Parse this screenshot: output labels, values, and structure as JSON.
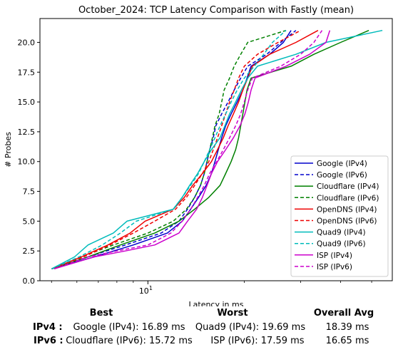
{
  "chart_data": {
    "type": "line",
    "title": "October_2024: TCP Latency Comparison with Fastly (mean)",
    "xlabel": "Latency in ms",
    "ylabel": "# Probes",
    "xscale": "log",
    "xlim": [
      4.6,
      58
    ],
    "ylim": [
      0,
      22
    ],
    "xticks": [
      {
        "value": 10,
        "label": "10^1"
      }
    ],
    "yticks": [
      {
        "value": 0,
        "label": "0.0"
      },
      {
        "value": 2.5,
        "label": "2.5"
      },
      {
        "value": 5,
        "label": "5.0"
      },
      {
        "value": 7.5,
        "label": "7.5"
      },
      {
        "value": 10,
        "label": "10.0"
      },
      {
        "value": 12.5,
        "label": "12.5"
      },
      {
        "value": 15,
        "label": "15.0"
      },
      {
        "value": 17.5,
        "label": "17.5"
      },
      {
        "value": 20,
        "label": "20.0"
      }
    ],
    "grid": false,
    "legend_position": "lower right",
    "series": [
      {
        "name": "Google (IPv4)",
        "color": "#0000cc",
        "dash": "solid",
        "points": [
          [
            5.0,
            1
          ],
          [
            6.8,
            2
          ],
          [
            9.0,
            3
          ],
          [
            11.5,
            4
          ],
          [
            12.8,
            5
          ],
          [
            13.6,
            6
          ],
          [
            14.4,
            7
          ],
          [
            15.2,
            8
          ],
          [
            15.8,
            9
          ],
          [
            16.2,
            10
          ],
          [
            16.6,
            11
          ],
          [
            17.0,
            12
          ],
          [
            17.5,
            13
          ],
          [
            18.2,
            14
          ],
          [
            19.0,
            15
          ],
          [
            19.8,
            16
          ],
          [
            20.4,
            17
          ],
          [
            21.0,
            18
          ],
          [
            24.0,
            19
          ],
          [
            26.5,
            20
          ],
          [
            28.0,
            21
          ]
        ]
      },
      {
        "name": "Google (IPv6)",
        "color": "#0000cc",
        "dash": "dashed",
        "points": [
          [
            5.0,
            1
          ],
          [
            6.5,
            2
          ],
          [
            8.5,
            3
          ],
          [
            11.0,
            4
          ],
          [
            12.5,
            5
          ],
          [
            13.3,
            6
          ],
          [
            14.0,
            7
          ],
          [
            14.6,
            8
          ],
          [
            15.0,
            9
          ],
          [
            15.3,
            10
          ],
          [
            15.6,
            11
          ],
          [
            16.0,
            12
          ],
          [
            16.3,
            13
          ],
          [
            17.0,
            14
          ],
          [
            17.8,
            15
          ],
          [
            18.6,
            16
          ],
          [
            19.5,
            17
          ],
          [
            20.5,
            18
          ],
          [
            23.5,
            19
          ],
          [
            26.0,
            20
          ],
          [
            29.0,
            21
          ]
        ]
      },
      {
        "name": "Cloudflare (IPv4)",
        "color": "#008000",
        "dash": "solid",
        "points": [
          [
            5.0,
            1
          ],
          [
            6.5,
            2
          ],
          [
            8.2,
            3
          ],
          [
            10.5,
            4
          ],
          [
            12.5,
            5
          ],
          [
            14.0,
            6
          ],
          [
            15.5,
            7
          ],
          [
            16.8,
            8
          ],
          [
            17.5,
            9
          ],
          [
            18.2,
            10
          ],
          [
            18.8,
            11
          ],
          [
            19.2,
            12
          ],
          [
            19.5,
            13
          ],
          [
            19.8,
            14
          ],
          [
            20.1,
            15
          ],
          [
            20.4,
            16
          ],
          [
            21.0,
            17
          ],
          [
            28.0,
            18
          ],
          [
            33.0,
            19
          ],
          [
            40.0,
            20
          ],
          [
            49.0,
            21
          ]
        ]
      },
      {
        "name": "Cloudflare (IPv6)",
        "color": "#008000",
        "dash": "dashed",
        "points": [
          [
            5.0,
            1
          ],
          [
            6.2,
            2
          ],
          [
            7.8,
            3
          ],
          [
            10.0,
            4
          ],
          [
            12.0,
            5
          ],
          [
            13.2,
            6
          ],
          [
            14.0,
            7
          ],
          [
            14.6,
            8
          ],
          [
            15.0,
            9
          ],
          [
            15.3,
            10
          ],
          [
            15.6,
            11
          ],
          [
            15.9,
            12
          ],
          [
            16.2,
            13
          ],
          [
            16.7,
            14
          ],
          [
            17.0,
            15
          ],
          [
            17.3,
            16
          ],
          [
            18.0,
            17
          ],
          [
            18.6,
            18
          ],
          [
            19.5,
            19
          ],
          [
            20.5,
            20
          ],
          [
            27.0,
            21
          ]
        ]
      },
      {
        "name": "OpenDNS (IPv4)",
        "color": "#ee0000",
        "dash": "solid",
        "points": [
          [
            5.0,
            1
          ],
          [
            6.2,
            2
          ],
          [
            7.5,
            3
          ],
          [
            8.8,
            4
          ],
          [
            9.8,
            5
          ],
          [
            12.0,
            6
          ],
          [
            13.0,
            7
          ],
          [
            13.8,
            8
          ],
          [
            14.8,
            9
          ],
          [
            15.8,
            10
          ],
          [
            16.5,
            11
          ],
          [
            17.2,
            12
          ],
          [
            17.8,
            13
          ],
          [
            18.5,
            14
          ],
          [
            19.2,
            15
          ],
          [
            19.8,
            16
          ],
          [
            20.5,
            17
          ],
          [
            21.2,
            18
          ],
          [
            24.0,
            19
          ],
          [
            29.0,
            20
          ],
          [
            34.0,
            21
          ]
        ]
      },
      {
        "name": "OpenDNS (IPv6)",
        "color": "#ee0000",
        "dash": "dashed",
        "points": [
          [
            5.0,
            1
          ],
          [
            6.3,
            2
          ],
          [
            7.6,
            3
          ],
          [
            9.0,
            4
          ],
          [
            10.5,
            5
          ],
          [
            12.2,
            6
          ],
          [
            13.2,
            7
          ],
          [
            14.0,
            8
          ],
          [
            14.8,
            9
          ],
          [
            15.5,
            10
          ],
          [
            16.0,
            11
          ],
          [
            16.5,
            12
          ],
          [
            17.0,
            13
          ],
          [
            17.5,
            14
          ],
          [
            18.0,
            15
          ],
          [
            18.6,
            16
          ],
          [
            19.2,
            17
          ],
          [
            20.0,
            18
          ],
          [
            22.0,
            19
          ],
          [
            25.5,
            20
          ],
          [
            30.0,
            21
          ]
        ]
      },
      {
        "name": "Quad9 (IPv4)",
        "color": "#00bbbb",
        "dash": "solid",
        "points": [
          [
            5.0,
            1
          ],
          [
            5.9,
            2
          ],
          [
            6.5,
            3
          ],
          [
            7.8,
            4
          ],
          [
            8.6,
            5
          ],
          [
            12.0,
            6
          ],
          [
            12.8,
            7
          ],
          [
            13.5,
            8
          ],
          [
            14.3,
            9
          ],
          [
            15.0,
            10
          ],
          [
            15.8,
            11
          ],
          [
            16.8,
            12
          ],
          [
            17.4,
            13
          ],
          [
            18.0,
            14
          ],
          [
            18.8,
            15
          ],
          [
            19.6,
            16
          ],
          [
            20.5,
            17
          ],
          [
            22.0,
            18
          ],
          [
            29.0,
            19
          ],
          [
            36.0,
            20
          ],
          [
            54.0,
            21
          ]
        ]
      },
      {
        "name": "Quad9 (IPv6)",
        "color": "#00bbbb",
        "dash": "dashed",
        "points": [
          [
            5.0,
            1
          ],
          [
            6.1,
            2
          ],
          [
            7.2,
            3
          ],
          [
            8.2,
            4
          ],
          [
            9.2,
            5
          ],
          [
            12.0,
            6
          ],
          [
            12.8,
            7
          ],
          [
            13.6,
            8
          ],
          [
            14.4,
            9
          ],
          [
            15.0,
            10
          ],
          [
            15.6,
            11
          ],
          [
            16.2,
            12
          ],
          [
            16.8,
            13
          ],
          [
            17.5,
            14
          ],
          [
            18.2,
            15
          ],
          [
            19.0,
            16
          ],
          [
            20.0,
            17
          ],
          [
            21.5,
            18
          ],
          [
            23.0,
            19
          ],
          [
            24.5,
            20
          ],
          [
            27.0,
            21
          ]
        ]
      },
      {
        "name": "ISP (IPv4)",
        "color": "#cc00cc",
        "dash": "solid",
        "points": [
          [
            5.1,
            1
          ],
          [
            6.8,
            2
          ],
          [
            8.5,
            2.5
          ],
          [
            10.5,
            3
          ],
          [
            12.5,
            4
          ],
          [
            13.3,
            5
          ],
          [
            14.2,
            6
          ],
          [
            14.8,
            7
          ],
          [
            15.3,
            8
          ],
          [
            15.8,
            9
          ],
          [
            16.5,
            10
          ],
          [
            17.5,
            11
          ],
          [
            18.5,
            12
          ],
          [
            19.4,
            13
          ],
          [
            20.1,
            14
          ],
          [
            20.6,
            15
          ],
          [
            21.0,
            16
          ],
          [
            21.6,
            17
          ],
          [
            27.0,
            18
          ],
          [
            32.0,
            19
          ],
          [
            36.0,
            20
          ],
          [
            37.0,
            21
          ]
        ]
      },
      {
        "name": "ISP (IPv6)",
        "color": "#cc00cc",
        "dash": "dashed",
        "points": [
          [
            5.1,
            1
          ],
          [
            6.5,
            2
          ],
          [
            8.0,
            2.5
          ],
          [
            10.0,
            3
          ],
          [
            11.8,
            4
          ],
          [
            12.8,
            5
          ],
          [
            13.6,
            6
          ],
          [
            14.3,
            7
          ],
          [
            15.0,
            8
          ],
          [
            15.6,
            9
          ],
          [
            16.4,
            10
          ],
          [
            17.2,
            11
          ],
          [
            18.0,
            12
          ],
          [
            18.8,
            13
          ],
          [
            19.5,
            14
          ],
          [
            20.0,
            15
          ],
          [
            20.5,
            16
          ],
          [
            21.2,
            17
          ],
          [
            26.0,
            18
          ],
          [
            30.0,
            19
          ],
          [
            33.0,
            20
          ],
          [
            35.0,
            21
          ]
        ]
      }
    ]
  },
  "summary": {
    "headers": {
      "best": "Best",
      "worst": "Worst",
      "overall": "Overall Avg"
    },
    "rows": [
      {
        "label": "IPv4 :",
        "best": "Google (IPv4): 16.89 ms",
        "worst": "Quad9 (IPv4): 19.69 ms",
        "overall": "18.39 ms"
      },
      {
        "label": "IPv6 :",
        "best": "Cloudflare (IPv6): 15.72 ms",
        "worst": "ISP (IPv6): 17.59 ms",
        "overall": "16.65 ms"
      }
    ]
  }
}
